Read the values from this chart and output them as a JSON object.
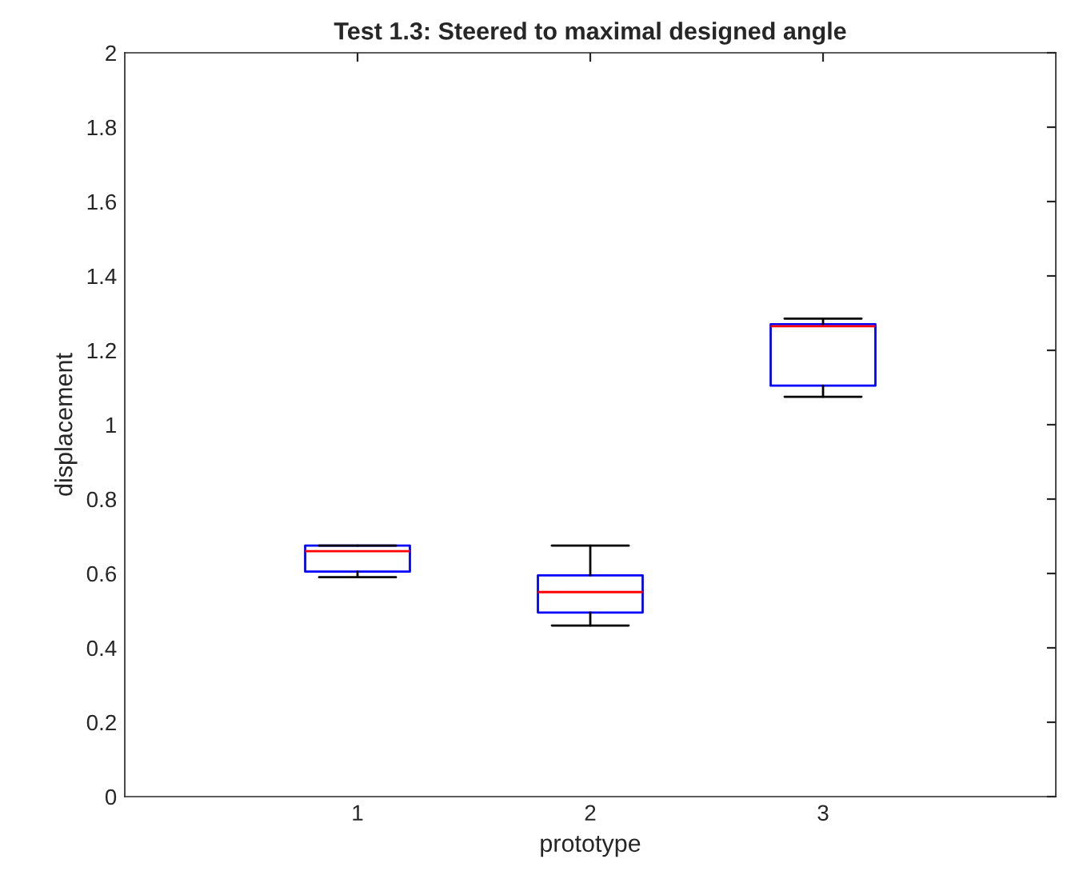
{
  "chart_data": {
    "type": "box",
    "title": "Test 1.3: Steered to maximal designed angle",
    "xlabel": "prototype",
    "ylabel": "displacement",
    "categories": [
      "1",
      "2",
      "3"
    ],
    "series": [
      {
        "color": "#0000ff",
        "boxes": [
          {
            "low": 0.59,
            "q1": 0.605,
            "median": 0.66,
            "q3": 0.675,
            "high": 0.675
          },
          {
            "low": 0.46,
            "q1": 0.495,
            "median": 0.55,
            "q3": 0.595,
            "high": 0.675
          },
          {
            "low": 1.075,
            "q1": 1.105,
            "median": 1.265,
            "q3": 1.27,
            "high": 1.285
          }
        ]
      }
    ],
    "ylim": [
      0,
      2
    ],
    "yticks": [
      0,
      0.2,
      0.4,
      0.6,
      0.8,
      1,
      1.2,
      1.4,
      1.6,
      1.8,
      2
    ],
    "grid": false,
    "legend": false
  }
}
